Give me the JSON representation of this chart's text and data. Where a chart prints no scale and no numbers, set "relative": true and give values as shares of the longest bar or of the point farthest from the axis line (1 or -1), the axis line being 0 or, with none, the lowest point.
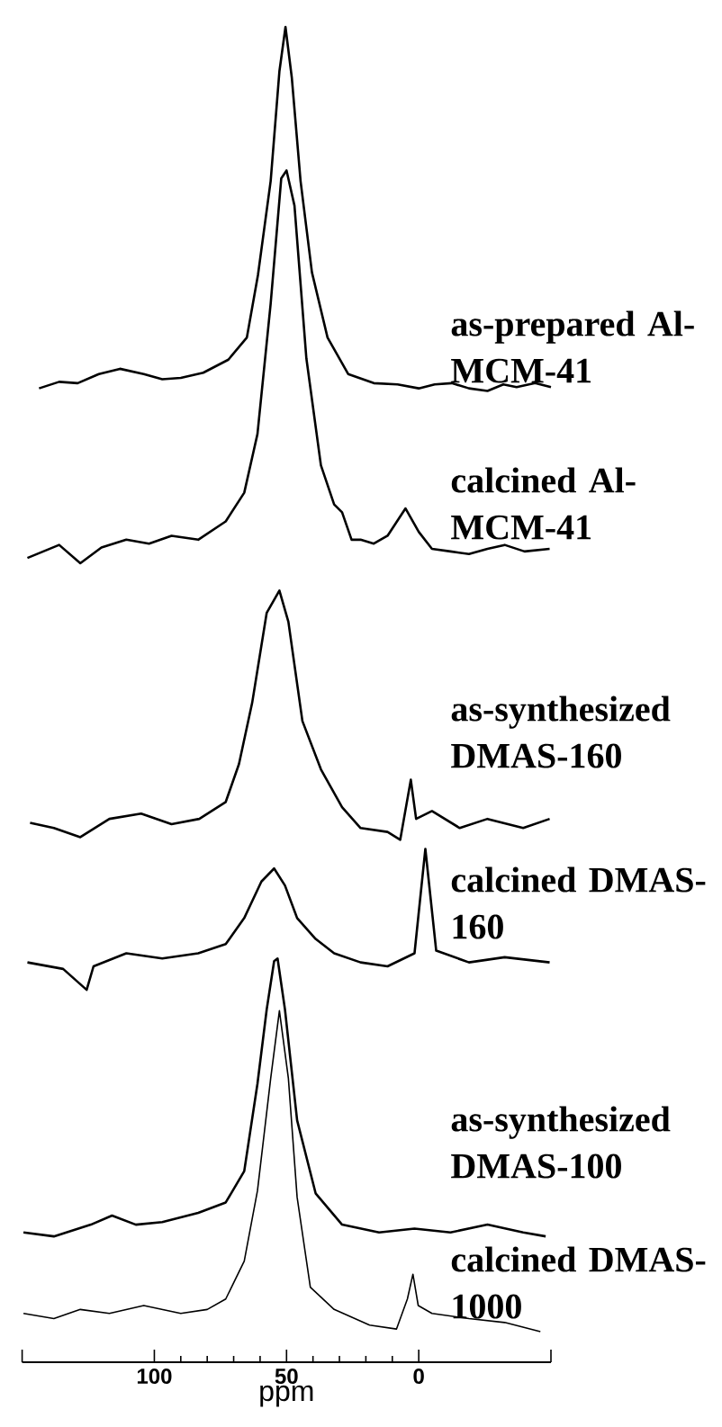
{
  "chart_data": {
    "type": "line",
    "relative": true,
    "xlim": [
      150,
      -50
    ],
    "xticks": [
      100,
      50,
      0
    ],
    "xlabel": "ppm",
    "series": [
      {
        "name": "as-prepared Al-MCM-41",
        "color": "#000000",
        "x": [
          143.6,
          136,
          129,
          121,
          113,
          104,
          97,
          90,
          81.5,
          72,
          65,
          60.8,
          56,
          52.7,
          50.4,
          48,
          44.7,
          40.4,
          34.5,
          26.7,
          17,
          8,
          0,
          -6,
          -12.5,
          -19,
          -26,
          -32,
          -37,
          -44,
          -50
        ],
        "values": [
          0.723,
          0.728,
          0.727,
          0.734,
          0.738,
          0.734,
          0.73,
          0.731,
          0.735,
          0.745,
          0.762,
          0.81,
          0.882,
          0.966,
          1.0,
          0.961,
          0.882,
          0.812,
          0.762,
          0.734,
          0.727,
          0.726,
          0.723,
          0.726,
          0.727,
          0.723,
          0.721,
          0.726,
          0.724,
          0.727,
          0.724
        ]
      },
      {
        "name": "calcined Al-MCM-41",
        "color": "#000000",
        "x": [
          148,
          142,
          136,
          128,
          120,
          110.6,
          102,
          93.5,
          83.4,
          73,
          66,
          61,
          56,
          52,
          50,
          47,
          42.5,
          37,
          32,
          29,
          25.4,
          22,
          17,
          11.8,
          5,
          0,
          -5,
          -12,
          -19,
          -26,
          -32.5,
          -40,
          -49.5
        ],
        "values": [
          0.593,
          0.598,
          0.603,
          0.589,
          0.601,
          0.607,
          0.604,
          0.61,
          0.607,
          0.621,
          0.643,
          0.688,
          0.788,
          0.884,
          0.89,
          0.863,
          0.746,
          0.664,
          0.634,
          0.628,
          0.607,
          0.607,
          0.604,
          0.61,
          0.631,
          0.613,
          0.6,
          0.598,
          0.596,
          0.6,
          0.603,
          0.598,
          0.6
        ]
      },
      {
        "name": "as-synthesized DMAS-160",
        "color": "#000000",
        "x": [
          147,
          138,
          128,
          117,
          105,
          93.5,
          83,
          73,
          68,
          63,
          57.5,
          52.7,
          49.3,
          44,
          37,
          29,
          22,
          11.8,
          7,
          3,
          1,
          -5,
          -15.5,
          -26,
          -39.5,
          -49.5
        ],
        "values": [
          0.39,
          0.386,
          0.379,
          0.393,
          0.397,
          0.389,
          0.393,
          0.406,
          0.435,
          0.482,
          0.551,
          0.568,
          0.544,
          0.468,
          0.431,
          0.402,
          0.386,
          0.383,
          0.377,
          0.423,
          0.393,
          0.399,
          0.386,
          0.393,
          0.386,
          0.393
        ]
      },
      {
        "name": "calcined DMAS-160",
        "color": "#000000",
        "x": [
          148,
          134.5,
          125.6,
          123,
          110.6,
          97,
          83.4,
          73,
          66,
          59.5,
          54.7,
          50.6,
          46,
          39,
          32,
          22,
          11.8,
          1.6,
          -2.5,
          -6.6,
          -19,
          -32.5,
          -49.5
        ],
        "values": [
          0.283,
          0.278,
          0.262,
          0.28,
          0.29,
          0.286,
          0.29,
          0.297,
          0.317,
          0.345,
          0.355,
          0.342,
          0.317,
          0.301,
          0.29,
          0.283,
          0.28,
          0.29,
          0.37,
          0.292,
          0.283,
          0.287,
          0.283
        ]
      },
      {
        "name": "as-synthesized DMAS-100",
        "color": "#000000",
        "x": [
          149.5,
          138,
          124,
          116,
          107,
          97,
          83.4,
          73,
          66,
          61,
          57.5,
          54.7,
          53.4,
          50.6,
          46,
          39,
          29,
          15,
          1.6,
          -12,
          -26,
          -39.5,
          -48
        ],
        "values": [
          0.076,
          0.073,
          0.082,
          0.089,
          0.082,
          0.084,
          0.091,
          0.099,
          0.123,
          0.19,
          0.247,
          0.284,
          0.286,
          0.247,
          0.162,
          0.106,
          0.082,
          0.076,
          0.079,
          0.076,
          0.082,
          0.076,
          0.073
        ]
      },
      {
        "name": "calcined DMAS-1000",
        "color": "#000000",
        "x": [
          149.5,
          138,
          128,
          117,
          104,
          90,
          80,
          73,
          66,
          61,
          56,
          52.7,
          49.3,
          46,
          41,
          32,
          18.6,
          8.4,
          4.3,
          2.2,
          0.2,
          -5,
          -19,
          -32.5,
          -46
        ],
        "values": [
          0.014,
          0.01,
          0.017,
          0.014,
          0.02,
          0.014,
          0.017,
          0.025,
          0.054,
          0.108,
          0.194,
          0.246,
          0.194,
          0.103,
          0.034,
          0.017,
          0.005,
          0.002,
          0.025,
          0.044,
          0.02,
          0.014,
          0.01,
          0.007,
          0
        ]
      }
    ]
  }
}
